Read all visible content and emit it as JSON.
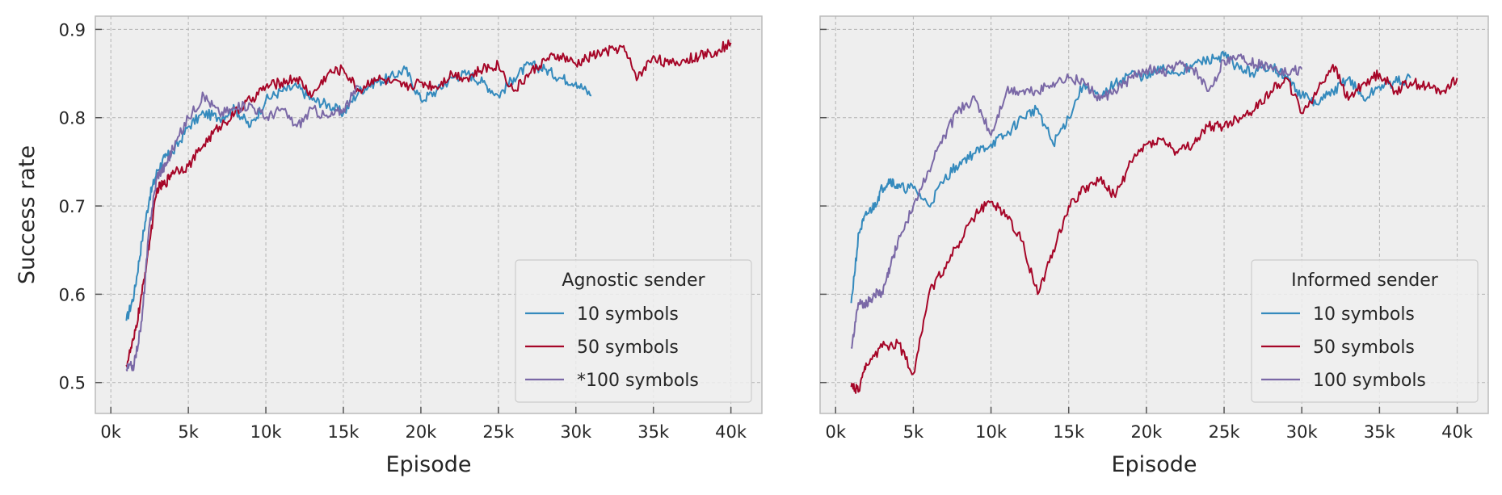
{
  "chart_data": [
    {
      "type": "line",
      "xlabel": "Episode",
      "ylabel": "Success rate",
      "xlim": [
        -1000,
        42000
      ],
      "ylim": [
        0.465,
        0.915
      ],
      "xticks": [
        0,
        5000,
        10000,
        15000,
        20000,
        25000,
        30000,
        35000,
        40000
      ],
      "xtick_labels": [
        "0k",
        "5k",
        "10k",
        "15k",
        "20k",
        "25k",
        "30k",
        "35k",
        "40k"
      ],
      "yticks": [
        0.5,
        0.6,
        0.7,
        0.8,
        0.9
      ],
      "ytick_labels": [
        "0.5",
        "0.6",
        "0.7",
        "0.8",
        "0.9"
      ],
      "grid": true,
      "legend": {
        "title": "Agnostic sender",
        "placement": "lower-right"
      },
      "series": [
        {
          "name": "10 symbols",
          "color": "#348abd",
          "x": [
            1000,
            1500,
            2000,
            2500,
            3000,
            3500,
            4000,
            5000,
            6000,
            7000,
            8000,
            9000,
            10000,
            11000,
            12000,
            13000,
            14000,
            15000,
            16000,
            17000,
            18000,
            19000,
            20000,
            21000,
            22000,
            23000,
            24000,
            25000,
            26000,
            27000,
            28000,
            29000,
            30000,
            31000
          ],
          "values": [
            0.57,
            0.6,
            0.66,
            0.71,
            0.74,
            0.755,
            0.76,
            0.79,
            0.805,
            0.8,
            0.81,
            0.79,
            0.82,
            0.83,
            0.835,
            0.82,
            0.815,
            0.805,
            0.83,
            0.84,
            0.845,
            0.855,
            0.82,
            0.83,
            0.845,
            0.85,
            0.84,
            0.825,
            0.845,
            0.86,
            0.855,
            0.845,
            0.84,
            0.825
          ]
        },
        {
          "name": "50 symbols",
          "color": "#a60628",
          "x": [
            1000,
            1500,
            2000,
            2500,
            3000,
            3500,
            4000,
            5000,
            6000,
            7000,
            8000,
            9000,
            10000,
            11000,
            12000,
            13000,
            14000,
            15000,
            16000,
            17000,
            18000,
            19000,
            20000,
            21000,
            22000,
            23000,
            24000,
            25000,
            26000,
            27000,
            28000,
            29000,
            30000,
            31000,
            32000,
            33000,
            34000,
            35000,
            36000,
            37000,
            38000,
            39000,
            40000
          ],
          "values": [
            0.52,
            0.55,
            0.6,
            0.66,
            0.72,
            0.725,
            0.74,
            0.745,
            0.77,
            0.79,
            0.805,
            0.82,
            0.835,
            0.84,
            0.845,
            0.825,
            0.85,
            0.855,
            0.83,
            0.845,
            0.84,
            0.835,
            0.84,
            0.835,
            0.85,
            0.845,
            0.855,
            0.86,
            0.83,
            0.85,
            0.865,
            0.87,
            0.86,
            0.87,
            0.875,
            0.88,
            0.845,
            0.87,
            0.86,
            0.865,
            0.87,
            0.875,
            0.885
          ]
        },
        {
          "name": "*100 symbols",
          "color": "#7a68a6",
          "x": [
            1000,
            1500,
            2000,
            2500,
            3000,
            3500,
            4000,
            5000,
            6000,
            7000,
            8000,
            9000,
            10000,
            11000,
            12000,
            13000,
            14000,
            15000,
            16000
          ],
          "values": [
            0.515,
            0.52,
            0.57,
            0.68,
            0.735,
            0.745,
            0.765,
            0.8,
            0.825,
            0.805,
            0.81,
            0.815,
            0.8,
            0.81,
            0.79,
            0.81,
            0.8,
            0.81,
            0.835
          ]
        }
      ]
    },
    {
      "type": "line",
      "xlabel": "Episode",
      "ylabel": "",
      "xlim": [
        -1000,
        42000
      ],
      "ylim": [
        0.465,
        0.915
      ],
      "xticks": [
        0,
        5000,
        10000,
        15000,
        20000,
        25000,
        30000,
        35000,
        40000
      ],
      "xtick_labels": [
        "0k",
        "5k",
        "10k",
        "15k",
        "20k",
        "25k",
        "30k",
        "35k",
        "40k"
      ],
      "yticks": [
        0.5,
        0.6,
        0.7,
        0.8,
        0.9
      ],
      "ytick_labels": [
        "",
        "",
        "",
        "",
        ""
      ],
      "grid": true,
      "legend": {
        "title": "Informed sender",
        "placement": "lower-right"
      },
      "series": [
        {
          "name": "10 symbols",
          "color": "#348abd",
          "x": [
            1000,
            1500,
            2000,
            2500,
            3000,
            3500,
            4000,
            5000,
            6000,
            7000,
            8000,
            9000,
            10000,
            11000,
            12000,
            13000,
            14000,
            15000,
            16000,
            17000,
            18000,
            19000,
            20000,
            21000,
            22000,
            23000,
            24000,
            25000,
            26000,
            27000,
            28000,
            29000,
            30000,
            31000,
            32000,
            33000,
            34000,
            35000,
            36000,
            37000
          ],
          "values": [
            0.59,
            0.67,
            0.69,
            0.7,
            0.72,
            0.73,
            0.72,
            0.72,
            0.7,
            0.73,
            0.75,
            0.76,
            0.77,
            0.78,
            0.8,
            0.81,
            0.77,
            0.8,
            0.84,
            0.82,
            0.84,
            0.85,
            0.845,
            0.855,
            0.85,
            0.86,
            0.865,
            0.87,
            0.855,
            0.85,
            0.86,
            0.845,
            0.825,
            0.815,
            0.83,
            0.845,
            0.82,
            0.835,
            0.84,
            0.845
          ]
        },
        {
          "name": "50 symbols",
          "color": "#a60628",
          "x": [
            1000,
            1500,
            2000,
            3000,
            4000,
            5000,
            6000,
            7000,
            8000,
            9000,
            10000,
            11000,
            12000,
            13000,
            14000,
            15000,
            16000,
            17000,
            18000,
            19000,
            20000,
            21000,
            22000,
            23000,
            24000,
            25000,
            26000,
            27000,
            28000,
            29000,
            30000,
            31000,
            32000,
            33000,
            34000,
            35000,
            36000,
            37000,
            38000,
            39000,
            40000
          ],
          "values": [
            0.495,
            0.49,
            0.52,
            0.54,
            0.545,
            0.51,
            0.6,
            0.63,
            0.66,
            0.69,
            0.705,
            0.69,
            0.66,
            0.6,
            0.65,
            0.7,
            0.72,
            0.73,
            0.71,
            0.75,
            0.77,
            0.775,
            0.76,
            0.77,
            0.79,
            0.79,
            0.8,
            0.81,
            0.83,
            0.845,
            0.805,
            0.83,
            0.86,
            0.82,
            0.84,
            0.85,
            0.83,
            0.84,
            0.835,
            0.83,
            0.845
          ]
        },
        {
          "name": "100 symbols",
          "color": "#7a68a6",
          "x": [
            1000,
            1500,
            2000,
            2500,
            3000,
            3500,
            4000,
            5000,
            6000,
            7000,
            8000,
            9000,
            10000,
            11000,
            12000,
            13000,
            14000,
            15000,
            16000,
            17000,
            18000,
            19000,
            20000,
            21000,
            22000,
            23000,
            24000,
            25000,
            26000,
            27000,
            28000,
            29000,
            30000
          ],
          "values": [
            0.54,
            0.59,
            0.59,
            0.6,
            0.6,
            0.63,
            0.66,
            0.7,
            0.74,
            0.78,
            0.81,
            0.82,
            0.78,
            0.83,
            0.83,
            0.83,
            0.84,
            0.845,
            0.84,
            0.82,
            0.83,
            0.845,
            0.855,
            0.85,
            0.86,
            0.855,
            0.83,
            0.865,
            0.87,
            0.86,
            0.86,
            0.85,
            0.855
          ]
        }
      ]
    }
  ]
}
